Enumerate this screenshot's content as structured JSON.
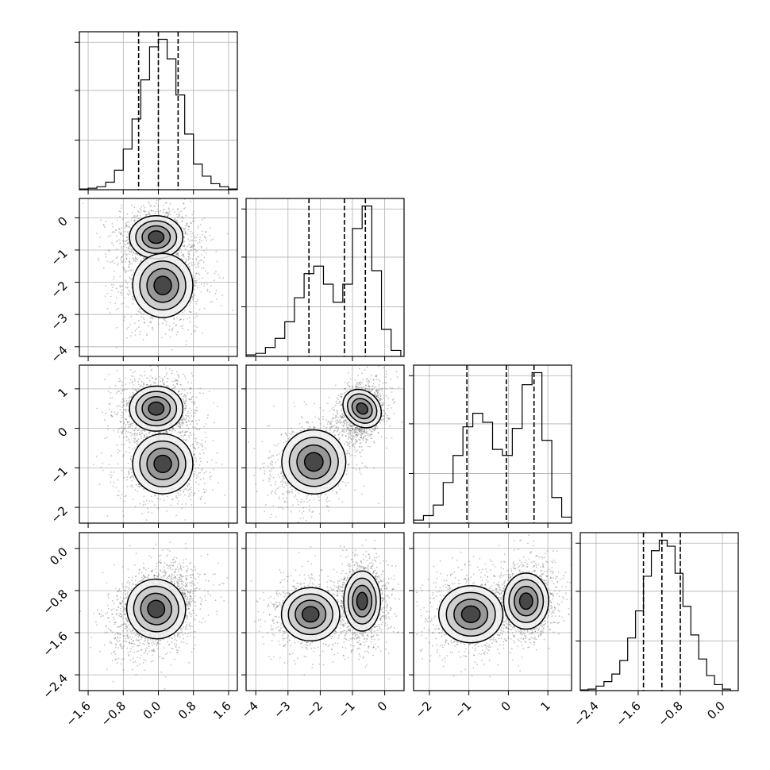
{
  "chart_data": {
    "type": "corner",
    "title": "",
    "grid": true,
    "parameters": [
      {
        "range": [
          -1.8,
          1.8
        ],
        "quantiles": [
          -0.45,
          0.0,
          0.45
        ],
        "ticks": [
          -1.6,
          -0.8,
          0.0,
          0.8,
          1.6
        ],
        "tick_labels": [
          "−1.6",
          "−0.8",
          "0.0",
          "0.8",
          "1.6"
        ]
      },
      {
        "range": [
          -4.3,
          0.6
        ],
        "quantiles": [
          -2.35,
          -1.25,
          -0.6
        ],
        "ticks": [
          -4,
          -3,
          -2,
          -1,
          0
        ],
        "tick_labels": [
          "−4",
          "−3",
          "−2",
          "−1",
          "0"
        ]
      },
      {
        "range": [
          -2.4,
          1.6
        ],
        "quantiles": [
          -1.05,
          -0.05,
          0.65
        ],
        "ticks": [
          -2,
          -1,
          0,
          1
        ],
        "tick_labels": [
          "−2",
          "−1",
          "0",
          "1"
        ]
      },
      {
        "range": [
          -2.7,
          0.3
        ],
        "quantiles": [
          -1.5,
          -1.15,
          -0.8
        ],
        "ticks": [
          -2.4,
          -1.6,
          -0.8,
          0.0
        ],
        "tick_labels": [
          "−2.4",
          "−1.6",
          "−0.8",
          "0.0"
        ]
      }
    ],
    "histograms": [
      {
        "param": 0,
        "bins": [
          -1.8,
          -1.6,
          -1.4,
          -1.2,
          -1.0,
          -0.8,
          -0.6,
          -0.4,
          -0.2,
          0.0,
          0.2,
          0.4,
          0.6,
          0.8,
          1.0,
          1.2,
          1.4,
          1.6,
          1.8
        ],
        "counts": [
          0.005,
          0.01,
          0.02,
          0.05,
          0.13,
          0.27,
          0.47,
          0.73,
          0.95,
          1.0,
          0.87,
          0.63,
          0.37,
          0.17,
          0.09,
          0.04,
          0.02,
          0.005
        ]
      },
      {
        "param": 1,
        "bins": [
          -4.3,
          -4.0,
          -3.7,
          -3.4,
          -3.1,
          -2.8,
          -2.5,
          -2.2,
          -1.9,
          -1.6,
          -1.3,
          -1.0,
          -0.7,
          -0.4,
          -0.1,
          0.2,
          0.5
        ],
        "counts": [
          0.01,
          0.02,
          0.06,
          0.12,
          0.23,
          0.39,
          0.55,
          0.6,
          0.48,
          0.36,
          0.48,
          0.85,
          1.0,
          0.57,
          0.18,
          0.04
        ]
      },
      {
        "param": 2,
        "bins": [
          -2.4,
          -2.15,
          -1.9,
          -1.65,
          -1.4,
          -1.15,
          -0.9,
          -0.65,
          -0.4,
          -0.15,
          0.1,
          0.35,
          0.6,
          0.85,
          1.1,
          1.35,
          1.6
        ],
        "counts": [
          0.02,
          0.05,
          0.12,
          0.27,
          0.45,
          0.64,
          0.73,
          0.67,
          0.49,
          0.45,
          0.63,
          0.92,
          1.0,
          0.55,
          0.17,
          0.04
        ]
      },
      {
        "param": 3,
        "bins": [
          -2.7,
          -2.55,
          -2.4,
          -2.25,
          -2.1,
          -1.95,
          -1.8,
          -1.65,
          -1.5,
          -1.35,
          -1.2,
          -1.05,
          -0.9,
          -0.75,
          -0.6,
          -0.45,
          -0.3,
          -0.15,
          0.0,
          0.15
        ],
        "counts": [
          0.005,
          0.01,
          0.03,
          0.06,
          0.11,
          0.2,
          0.35,
          0.53,
          0.76,
          0.93,
          1.0,
          0.96,
          0.78,
          0.56,
          0.37,
          0.21,
          0.1,
          0.04,
          0.01
        ]
      }
    ],
    "joint_density_modes": {
      "p1_vs_p0": [
        {
          "mean": [
            -0.05,
            -0.6
          ],
          "sd": [
            0.32,
            0.35
          ],
          "weight": 0.6
        },
        {
          "mean": [
            0.1,
            -2.1
          ],
          "sd": [
            0.38,
            0.55
          ],
          "weight": 0.4
        }
      ],
      "p2_vs_p0": [
        {
          "mean": [
            -0.05,
            0.5
          ],
          "sd": [
            0.32,
            0.3
          ],
          "weight": 0.6
        },
        {
          "mean": [
            0.1,
            -0.9
          ],
          "sd": [
            0.38,
            0.42
          ],
          "weight": 0.4
        }
      ],
      "p2_vs_p1": [
        {
          "mean": [
            -0.7,
            0.5
          ],
          "sd": [
            0.28,
            0.28
          ],
          "weight": 0.6,
          "corr": 0.2
        },
        {
          "mean": [
            -2.2,
            -0.85
          ],
          "sd": [
            0.55,
            0.45
          ],
          "weight": 0.4,
          "corr": 0.35
        }
      ],
      "p3_vs_p0": [
        {
          "mean": [
            -0.05,
            -1.15
          ],
          "sd": [
            0.35,
            0.3
          ],
          "weight": 1.0,
          "corr": 0.25
        }
      ],
      "p3_vs_p1": [
        {
          "mean": [
            -0.7,
            -1.0
          ],
          "sd": [
            0.3,
            0.3
          ],
          "weight": 0.6
        },
        {
          "mean": [
            -2.3,
            -1.25
          ],
          "sd": [
            0.5,
            0.28
          ],
          "weight": 0.4
        }
      ],
      "p3_vs_p2": [
        {
          "mean": [
            0.45,
            -1.0
          ],
          "sd": [
            0.3,
            0.28
          ],
          "weight": 0.6
        },
        {
          "mean": [
            -0.95,
            -1.25
          ],
          "sd": [
            0.45,
            0.3
          ],
          "weight": 0.4
        }
      ]
    }
  }
}
